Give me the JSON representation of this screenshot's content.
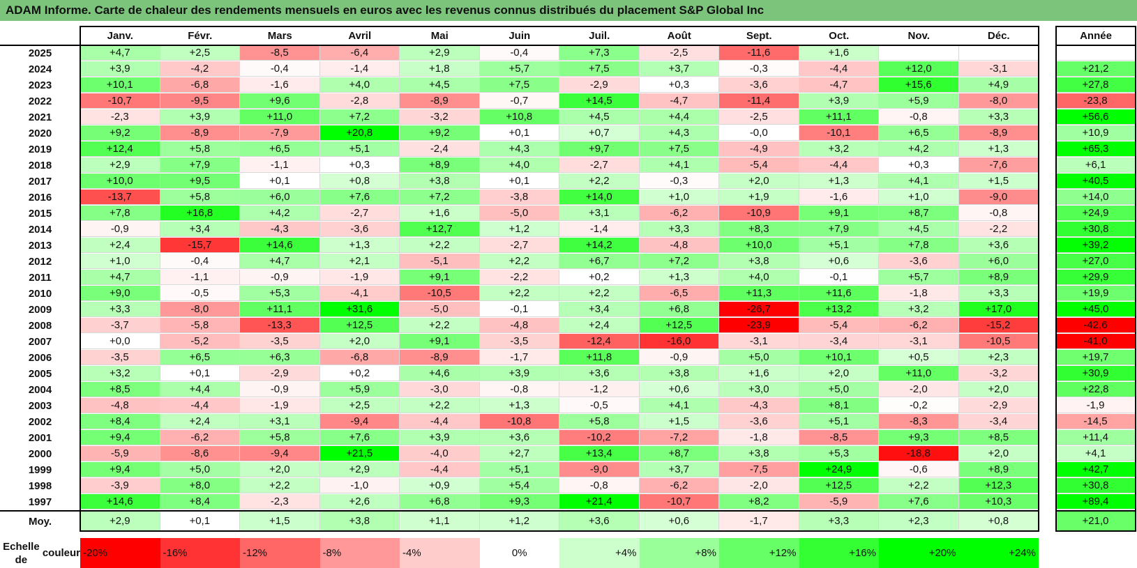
{
  "title": "ADAM Informe. Carte de chaleur des rendements mensuels en euros avec les revenus connus distribués du placement S&P Global Inc",
  "chart_data": {
    "type": "heatmap",
    "title": "ADAM Informe. Carte de chaleur des rendements mensuels en euros avec les revenus connus distribués du placement S&P Global Inc",
    "months": [
      "Janv.",
      "Févr.",
      "Mars",
      "Avril",
      "Mai",
      "Juin",
      "Juil.",
      "Août",
      "Sept.",
      "Oct.",
      "Nov.",
      "Déc."
    ],
    "year_header": "Année",
    "rows": [
      {
        "year": "2025",
        "months": [
          "+4,7",
          "+2,5",
          "-8,5",
          "-6,4",
          "+2,9",
          "-0,4",
          "+7,3",
          "-2,5",
          "-11,6",
          "+1,6",
          "",
          ""
        ],
        "annual": ""
      },
      {
        "year": "2024",
        "months": [
          "+3,9",
          "-4,2",
          "-0,4",
          "-1,4",
          "+1,8",
          "+5,7",
          "+7,5",
          "+3,7",
          "-0,3",
          "-4,4",
          "+12,0",
          "-3,1"
        ],
        "annual": "+21,2"
      },
      {
        "year": "2023",
        "months": [
          "+10,1",
          "-6,8",
          "-1,6",
          "+4,0",
          "+4,5",
          "+7,5",
          "-2,9",
          "+0,3",
          "-3,6",
          "-4,7",
          "+15,6",
          "+4,9"
        ],
        "annual": "+27,8"
      },
      {
        "year": "2022",
        "months": [
          "-10,7",
          "-9,5",
          "+9,6",
          "-2,8",
          "-8,9",
          "-0,7",
          "+14,5",
          "-4,7",
          "-11,4",
          "+3,9",
          "+5,9",
          "-8,0"
        ],
        "annual": "-23,8"
      },
      {
        "year": "2021",
        "months": [
          "-2,3",
          "+3,9",
          "+11,0",
          "+7,2",
          "-3,2",
          "+10,8",
          "+4,5",
          "+4,4",
          "-2,5",
          "+11,1",
          "-0,8",
          "+3,3"
        ],
        "annual": "+56,6"
      },
      {
        "year": "2020",
        "months": [
          "+9,2",
          "-8,9",
          "-7,9",
          "+20,8",
          "+9,2",
          "+0,1",
          "+0,7",
          "+4,3",
          "-0,0",
          "-10,1",
          "+6,5",
          "-8,9"
        ],
        "annual": "+10,9"
      },
      {
        "year": "2019",
        "months": [
          "+12,4",
          "+5,8",
          "+6,5",
          "+5,1",
          "-2,4",
          "+4,3",
          "+9,7",
          "+7,5",
          "-4,9",
          "+3,2",
          "+4,2",
          "+1,3"
        ],
        "annual": "+65,3"
      },
      {
        "year": "2018",
        "months": [
          "+2,9",
          "+7,9",
          "-1,1",
          "+0,3",
          "+8,9",
          "+4,0",
          "-2,7",
          "+4,1",
          "-5,4",
          "-4,4",
          "+0,3",
          "-7,6"
        ],
        "annual": "+6,1"
      },
      {
        "year": "2017",
        "months": [
          "+10,0",
          "+9,5",
          "+0,1",
          "+0,8",
          "+3,8",
          "+0,1",
          "+2,2",
          "-0,3",
          "+2,0",
          "+1,3",
          "+4,1",
          "+1,5"
        ],
        "annual": "+40,5"
      },
      {
        "year": "2016",
        "months": [
          "-13,7",
          "+5,8",
          "+6,0",
          "+7,6",
          "+7,2",
          "-3,8",
          "+14,0",
          "+1,0",
          "+1,9",
          "-1,6",
          "+1,0",
          "-9,0"
        ],
        "annual": "+14,0"
      },
      {
        "year": "2015",
        "months": [
          "+7,8",
          "+16,8",
          "+4,2",
          "-2,7",
          "+1,6",
          "-5,0",
          "+3,1",
          "-6,2",
          "-10,9",
          "+9,1",
          "+8,7",
          "-0,8"
        ],
        "annual": "+24,9"
      },
      {
        "year": "2014",
        "months": [
          "-0,9",
          "+3,4",
          "-4,3",
          "-3,6",
          "+12,7",
          "+1,2",
          "-1,4",
          "+3,3",
          "+8,3",
          "+7,9",
          "+4,5",
          "-2,2"
        ],
        "annual": "+30,8"
      },
      {
        "year": "2013",
        "months": [
          "+2,4",
          "-15,7",
          "+14,6",
          "+1,3",
          "+2,2",
          "-2,7",
          "+14,2",
          "-4,8",
          "+10,0",
          "+5,1",
          "+7,8",
          "+3,6"
        ],
        "annual": "+39,2"
      },
      {
        "year": "2012",
        "months": [
          "+1,0",
          "-0,4",
          "+4,7",
          "+2,1",
          "-5,1",
          "+2,2",
          "+6,7",
          "+7,2",
          "+3,8",
          "+0,6",
          "-3,6",
          "+6,0"
        ],
        "annual": "+27,0"
      },
      {
        "year": "2011",
        "months": [
          "+4,7",
          "-1,1",
          "-0,9",
          "-1,9",
          "+9,1",
          "-2,2",
          "+0,2",
          "+1,3",
          "+4,0",
          "-0,1",
          "+5,7",
          "+8,9"
        ],
        "annual": "+29,9"
      },
      {
        "year": "2010",
        "months": [
          "+9,0",
          "-0,5",
          "+5,3",
          "-4,1",
          "-10,5",
          "+2,2",
          "+2,2",
          "-6,5",
          "+11,3",
          "+11,6",
          "-1,8",
          "+3,3"
        ],
        "annual": "+19,9"
      },
      {
        "year": "2009",
        "months": [
          "+3,3",
          "-8,0",
          "+11,1",
          "+31,6",
          "-5,0",
          "-0,1",
          "+3,4",
          "+6,8",
          "-26,7",
          "+13,2",
          "+3,2",
          "+17,0"
        ],
        "annual": "+45,0"
      },
      {
        "year": "2008",
        "months": [
          "-3,7",
          "-5,8",
          "-13,3",
          "+12,5",
          "+2,2",
          "-4,8",
          "+2,4",
          "+12,5",
          "-23,9",
          "-5,4",
          "-6,2",
          "-15,2"
        ],
        "annual": "-42,6"
      },
      {
        "year": "2007",
        "months": [
          "+0,0",
          "-5,2",
          "-3,5",
          "+2,0",
          "+9,1",
          "-3,5",
          "-12,4",
          "-16,0",
          "-3,1",
          "-3,4",
          "-3,1",
          "-10,5"
        ],
        "annual": "-41,0"
      },
      {
        "year": "2006",
        "months": [
          "-3,5",
          "+6,5",
          "+6,3",
          "-6,8",
          "-8,9",
          "-1,7",
          "+11,8",
          "-0,9",
          "+5,0",
          "+10,1",
          "+0,5",
          "+2,3"
        ],
        "annual": "+19,7"
      },
      {
        "year": "2005",
        "months": [
          "+3,2",
          "+0,1",
          "-2,9",
          "+0,2",
          "+4,6",
          "+3,9",
          "+3,6",
          "+3,8",
          "+1,6",
          "+2,0",
          "+11,0",
          "-3,2"
        ],
        "annual": "+30,9"
      },
      {
        "year": "2004",
        "months": [
          "+8,5",
          "+4,4",
          "-0,9",
          "+5,9",
          "-3,0",
          "-0,8",
          "-1,2",
          "+0,6",
          "+3,0",
          "+5,0",
          "-2,0",
          "+2,0"
        ],
        "annual": "+22,8"
      },
      {
        "year": "2003",
        "months": [
          "-4,8",
          "-4,4",
          "-1,9",
          "+2,5",
          "+2,2",
          "+1,3",
          "-0,5",
          "+4,1",
          "-4,3",
          "+8,1",
          "-0,2",
          "-2,9"
        ],
        "annual": "-1,9"
      },
      {
        "year": "2002",
        "months": [
          "+8,4",
          "+2,4",
          "+3,1",
          "-9,4",
          "-4,4",
          "-10,8",
          "+5,8",
          "+1,5",
          "-3,6",
          "+5,1",
          "-8,3",
          "-3,4"
        ],
        "annual": "-14,5"
      },
      {
        "year": "2001",
        "months": [
          "+9,4",
          "-6,2",
          "+5,8",
          "+7,6",
          "+3,9",
          "+3,6",
          "-10,2",
          "-7,2",
          "-1,8",
          "-8,5",
          "+9,3",
          "+8,5"
        ],
        "annual": "+11,4"
      },
      {
        "year": "2000",
        "months": [
          "-5,9",
          "-8,6",
          "-9,4",
          "+21,5",
          "-4,0",
          "+2,7",
          "+13,4",
          "+8,7",
          "+3,8",
          "+5,3",
          "-18,8",
          "+2,0"
        ],
        "annual": "+4,1"
      },
      {
        "year": "1999",
        "months": [
          "+9,4",
          "+5,0",
          "+2,0",
          "+2,9",
          "-4,4",
          "+5,1",
          "-9,0",
          "+3,7",
          "-7,5",
          "+24,9",
          "-0,6",
          "+8,9"
        ],
        "annual": "+42,7"
      },
      {
        "year": "1998",
        "months": [
          "-3,9",
          "+8,0",
          "+2,2",
          "-1,0",
          "+0,9",
          "+5,4",
          "-0,8",
          "-6,2",
          "-2,0",
          "+12,5",
          "+2,2",
          "+12,3"
        ],
        "annual": "+30,8"
      },
      {
        "year": "1997",
        "months": [
          "+14,6",
          "+8,4",
          "-2,3",
          "+2,6",
          "+6,8",
          "+9,3",
          "+21,4",
          "-10,7",
          "+8,2",
          "-5,9",
          "+7,6",
          "+10,3"
        ],
        "annual": "+89,4"
      }
    ],
    "average": {
      "label": "Moy.",
      "months": [
        "+2,9",
        "+0,1",
        "+1,5",
        "+3,8",
        "+1,1",
        "+1,2",
        "+3,6",
        "+0,6",
        "-1,7",
        "+3,3",
        "+2,3",
        "+0,8"
      ],
      "annual": "+21,0"
    },
    "scale": {
      "label_line1": "Echelle de",
      "label_line2": "couleur",
      "steps": [
        {
          "label": "-20%",
          "value": -20,
          "color": "#ff0000"
        },
        {
          "label": "-16%",
          "value": -16,
          "color": "#ff3333"
        },
        {
          "label": "-12%",
          "value": -12,
          "color": "#ff6666"
        },
        {
          "label": "-8%",
          "value": -8,
          "color": "#ff9999"
        },
        {
          "label": "-4%",
          "value": -4,
          "color": "#ffcccc"
        },
        {
          "label": "0%",
          "value": 0,
          "color": "#ffffff"
        },
        {
          "label": "+4%",
          "value": 4,
          "color": "#ccffcc"
        },
        {
          "label": "+8%",
          "value": 8,
          "color": "#99ff99"
        },
        {
          "label": "+12%",
          "value": 12,
          "color": "#66ff66"
        },
        {
          "label": "+16%",
          "value": 16,
          "color": "#33ff33"
        },
        {
          "label": "+20%",
          "value": 20,
          "color": "#00ff00"
        },
        {
          "label": "+24%",
          "value": 24,
          "color": "#00ff00"
        }
      ]
    }
  }
}
